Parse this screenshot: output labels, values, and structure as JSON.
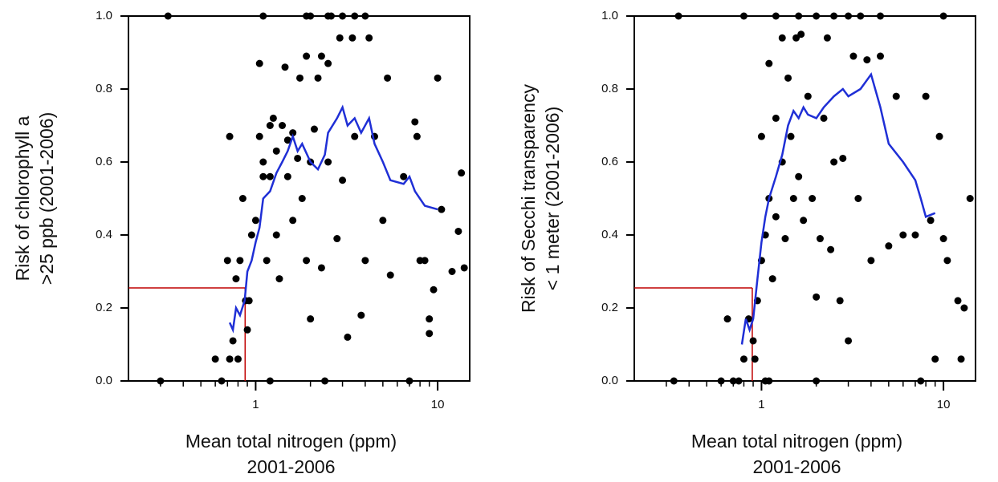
{
  "chart_data": [
    {
      "type": "scatter",
      "xlog": true,
      "xlim": [
        0.2,
        15
      ],
      "ylim": [
        0,
        1
      ],
      "xticks": [
        1,
        10
      ],
      "xminorticks": [
        0.3,
        0.4,
        0.5,
        0.6,
        0.7,
        0.8,
        0.9,
        2,
        3,
        4,
        5,
        6,
        7,
        8,
        9
      ],
      "yticks": [
        {
          "value": 0,
          "label": "0.0"
        },
        {
          "value": 0.2,
          "label": "0.2"
        },
        {
          "value": 0.4,
          "label": "0.4"
        },
        {
          "value": 0.6,
          "label": "0.6"
        },
        {
          "value": 0.8,
          "label": "0.8"
        },
        {
          "value": 1,
          "label": "1.0"
        }
      ],
      "ylabel": [
        "Risk of chlorophyll a",
        ">25 ppb (2001-2006)"
      ],
      "xlabel": [
        "Mean total nitrogen (ppm)",
        "2001-2006"
      ],
      "points": {
        "color": "#000000",
        "x": [
          0.3,
          0.33,
          0.6,
          0.65,
          0.7,
          0.72,
          0.72,
          0.75,
          0.78,
          0.8,
          0.82,
          0.85,
          0.88,
          0.9,
          0.92,
          0.95,
          1.0,
          1.05,
          1.05,
          1.1,
          1.1,
          1.15,
          1.2,
          1.2,
          1.25,
          1.3,
          1.3,
          1.35,
          1.4,
          1.45,
          1.5,
          1.5,
          1.6,
          1.6,
          1.7,
          1.75,
          1.8,
          1.9,
          1.9,
          2.0,
          2.0,
          2.1,
          2.2,
          2.3,
          2.3,
          2.4,
          2.5,
          2.5,
          2.6,
          2.8,
          2.9,
          3.0,
          3.2,
          3.4,
          3.5,
          3.8,
          4.0,
          4.2,
          4.5,
          5.0,
          5.3,
          5.5,
          6.5,
          7.0,
          7.5,
          7.7,
          8.0,
          8.5,
          9,
          9,
          9.5,
          10,
          10.5,
          12,
          13,
          13.5,
          14,
          1.1,
          1.9,
          2.5,
          3,
          3.5,
          4,
          2.0,
          1.2
        ],
        "y": [
          0,
          1,
          0.06,
          0,
          0.33,
          0.67,
          0.06,
          0.11,
          0.28,
          0.06,
          0.33,
          0.5,
          0.22,
          0.14,
          0.22,
          0.4,
          0.44,
          0.67,
          0.87,
          0.56,
          0.6,
          0.33,
          0.56,
          0.7,
          0.72,
          0.4,
          0.63,
          0.28,
          0.7,
          0.86,
          0.56,
          0.66,
          0.68,
          0.44,
          0.61,
          0.83,
          0.5,
          0.89,
          0.33,
          0.6,
          0.17,
          0.69,
          0.83,
          0.89,
          0.31,
          0,
          0.6,
          0.87,
          1,
          0.39,
          0.94,
          0.55,
          0.12,
          0.94,
          0.67,
          0.18,
          0.33,
          0.94,
          0.67,
          0.44,
          0.83,
          0.29,
          0.56,
          0,
          0.71,
          0.67,
          0.33,
          0.33,
          0.13,
          0.17,
          0.25,
          0.83,
          0.47,
          0.3,
          0.41,
          0.57,
          0.31,
          1,
          1,
          1,
          1,
          1,
          1,
          1,
          0
        ]
      },
      "line": {
        "color": "#1f2fd6",
        "x": [
          0.72,
          0.75,
          0.78,
          0.82,
          0.87,
          0.9,
          0.95,
          1.0,
          1.05,
          1.1,
          1.2,
          1.3,
          1.4,
          1.5,
          1.6,
          1.7,
          1.8,
          2.0,
          2.2,
          2.4,
          2.5,
          2.8,
          3.0,
          3.2,
          3.5,
          3.8,
          4.2,
          4.5,
          5,
          5.5,
          6.5,
          7,
          7.5,
          8.5,
          10
        ],
        "y": [
          0.16,
          0.14,
          0.2,
          0.18,
          0.22,
          0.3,
          0.33,
          0.38,
          0.42,
          0.5,
          0.52,
          0.57,
          0.6,
          0.63,
          0.67,
          0.63,
          0.65,
          0.6,
          0.58,
          0.62,
          0.68,
          0.72,
          0.75,
          0.7,
          0.72,
          0.68,
          0.72,
          0.65,
          0.6,
          0.55,
          0.54,
          0.56,
          0.52,
          0.48,
          0.47
        ]
      },
      "reference": {
        "x": 0.875,
        "y": 0.255,
        "color": "#c00000"
      }
    },
    {
      "type": "scatter",
      "xlog": true,
      "xlim": [
        0.2,
        15
      ],
      "ylim": [
        0,
        1
      ],
      "xticks": [
        1,
        10
      ],
      "xminorticks": [
        0.3,
        0.4,
        0.5,
        0.6,
        0.7,
        0.8,
        0.9,
        2,
        3,
        4,
        5,
        6,
        7,
        8,
        9
      ],
      "yticks": [
        {
          "value": 0,
          "label": "0.0"
        },
        {
          "value": 0.2,
          "label": "0.2"
        },
        {
          "value": 0.4,
          "label": "0.4"
        },
        {
          "value": 0.6,
          "label": "0.6"
        },
        {
          "value": 0.8,
          "label": "0.8"
        },
        {
          "value": 1,
          "label": "1.0"
        }
      ],
      "ylabel": [
        "Risk of Secchi transparency",
        "< 1 meter (2001-2006)"
      ],
      "xlabel": [
        "Mean total nitrogen (ppm)",
        "2001-2006"
      ],
      "points": {
        "color": "#000000",
        "x": [
          0.33,
          0.35,
          0.6,
          0.65,
          0.7,
          0.75,
          0.8,
          0.85,
          0.9,
          0.92,
          0.95,
          1.0,
          1.0,
          1.05,
          1.05,
          1.1,
          1.1,
          1.15,
          1.2,
          1.2,
          1.3,
          1.3,
          1.35,
          1.4,
          1.45,
          1.5,
          1.55,
          1.6,
          1.65,
          1.7,
          1.8,
          1.9,
          2.0,
          2.0,
          2.1,
          2.2,
          2.3,
          2.4,
          2.5,
          2.7,
          2.8,
          3.0,
          3.2,
          3.4,
          3.8,
          4.0,
          4.5,
          5.0,
          5.5,
          6,
          7.0,
          7.5,
          8.0,
          8.5,
          9.0,
          9.5,
          10,
          10.5,
          12,
          12.5,
          13,
          14,
          1.2,
          1.6,
          2,
          2.5,
          3,
          3.5,
          4.5,
          10,
          0.8,
          1.1
        ],
        "y": [
          0,
          1,
          0,
          0.17,
          0,
          0,
          0.06,
          0.17,
          0.11,
          0.06,
          0.22,
          0.33,
          0.67,
          0.4,
          0,
          0.5,
          0.87,
          0.28,
          0.72,
          0.45,
          0.94,
          0.6,
          0.39,
          0.83,
          0.67,
          0.5,
          0.94,
          0.56,
          0.95,
          0.44,
          0.78,
          0.5,
          0,
          0.23,
          0.39,
          0.72,
          0.94,
          0.36,
          0.6,
          0.22,
          0.61,
          0.11,
          0.89,
          0.5,
          0.88,
          0.33,
          0.89,
          0.37,
          0.78,
          0.4,
          0.4,
          0,
          0.78,
          0.44,
          0.06,
          0.67,
          0.39,
          0.33,
          0.22,
          0.06,
          0.2,
          0.5,
          1,
          1,
          1,
          1,
          1,
          1,
          1,
          1,
          1,
          0
        ]
      },
      "line": {
        "color": "#1f2fd6",
        "x": [
          0.78,
          0.82,
          0.86,
          0.9,
          0.95,
          1.0,
          1.05,
          1.1,
          1.2,
          1.3,
          1.4,
          1.5,
          1.6,
          1.7,
          1.8,
          2.0,
          2.2,
          2.5,
          2.8,
          3.0,
          3.5,
          4.0,
          4.5,
          5,
          6,
          7,
          7.5,
          8,
          9
        ],
        "y": [
          0.1,
          0.17,
          0.14,
          0.17,
          0.28,
          0.38,
          0.45,
          0.5,
          0.56,
          0.62,
          0.7,
          0.74,
          0.72,
          0.75,
          0.73,
          0.72,
          0.75,
          0.78,
          0.8,
          0.78,
          0.8,
          0.84,
          0.75,
          0.65,
          0.6,
          0.55,
          0.5,
          0.45,
          0.46
        ]
      },
      "reference": {
        "x": 0.89,
        "y": 0.255,
        "color": "#c00000"
      }
    }
  ]
}
